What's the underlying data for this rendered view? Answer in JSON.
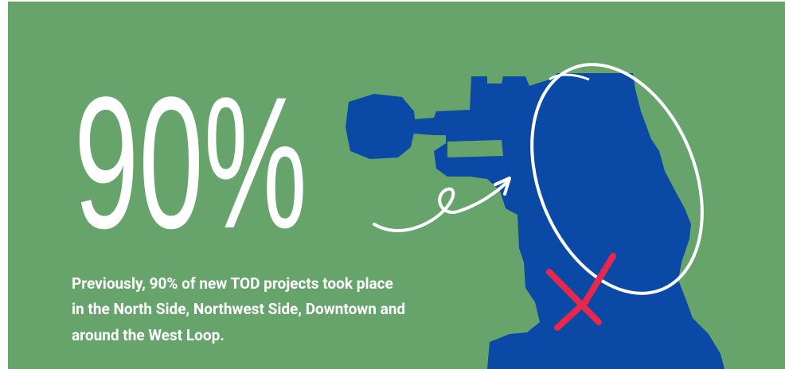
{
  "headline": "90%",
  "body_lines": [
    "Previously, 90% of new TOD projects took place",
    "in the North Side, Northwest Side, Downtown and",
    "around the West Loop."
  ]
}
